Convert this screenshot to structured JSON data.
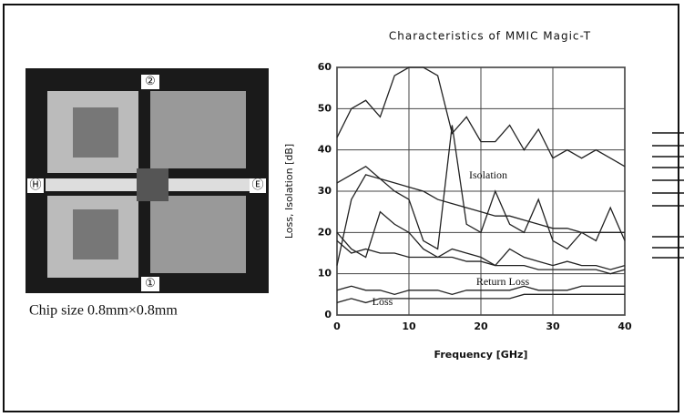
{
  "chart_data": {
    "type": "line",
    "title": "Characteristics of MMIC Magic-T",
    "x_label": "Frequency [GHz]",
    "y_label": "Loss, Isolation [dB]",
    "x": [
      0,
      2,
      4,
      6,
      8,
      10,
      12,
      14,
      16,
      18,
      20,
      22,
      24,
      26,
      28,
      30,
      32,
      34,
      36,
      38,
      40
    ],
    "series": [
      {
        "color": "#222",
        "values": [
          43,
          50,
          52,
          48,
          58,
          60,
          60,
          58,
          44,
          48,
          42,
          42,
          46,
          40,
          45,
          38,
          40,
          38,
          40,
          38,
          36
        ]
      },
      {
        "color": "#222",
        "values": [
          32,
          34,
          36,
          33,
          32,
          31,
          30,
          28,
          27,
          26,
          25,
          24,
          24,
          23,
          22,
          21,
          21,
          20,
          20,
          20,
          20
        ]
      },
      {
        "color": "#222",
        "values": [
          12,
          28,
          34,
          33,
          30,
          28,
          18,
          16,
          46,
          22,
          20,
          30,
          22,
          20,
          28,
          18,
          16,
          20,
          18,
          26,
          18
        ]
      },
      {
        "color": "#222",
        "values": [
          20,
          16,
          14,
          25,
          22,
          20,
          16,
          14,
          16,
          15,
          14,
          12,
          16,
          14,
          13,
          12,
          13,
          12,
          12,
          11,
          12
        ]
      },
      {
        "color": "#222",
        "values": [
          18,
          15,
          16,
          15,
          15,
          14,
          14,
          14,
          14,
          13,
          13,
          12,
          12,
          12,
          11,
          11,
          11,
          11,
          11,
          10,
          11
        ]
      },
      {
        "color": "#222",
        "values": [
          6,
          7,
          6,
          6,
          5,
          6,
          6,
          6,
          5,
          6,
          6,
          6,
          6,
          7,
          6,
          6,
          6,
          7,
          7,
          7,
          7
        ]
      },
      {
        "color": "#222",
        "values": [
          3,
          4,
          3,
          4,
          4,
          4,
          4,
          4,
          4,
          4,
          4,
          4,
          4,
          5,
          5,
          5,
          5,
          5,
          5,
          5,
          5
        ]
      }
    ],
    "annotations": [
      "Isolation",
      "Return Loss",
      "Loss"
    ],
    "xlim": [
      0,
      40
    ],
    "xticks": [
      0,
      10,
      20,
      30,
      40
    ],
    "ylim": [
      0,
      60
    ],
    "yticks": [
      0,
      10,
      20,
      30,
      40,
      50,
      60
    ],
    "grid": true
  },
  "chip_image": {
    "caption": "Chip size 0.8mm×0.8mm",
    "port_labels": [
      "②",
      "Ⓗ",
      "Ⓔ",
      "①"
    ]
  }
}
